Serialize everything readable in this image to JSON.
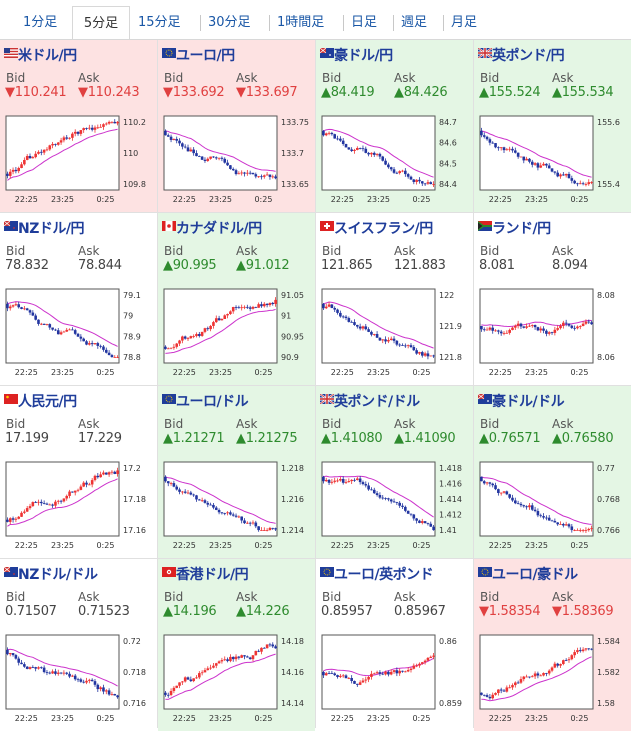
{
  "tabs": [
    "1分足",
    "5分足",
    "15分足",
    "30分足",
    "1時間足",
    "日足",
    "週足",
    "月足"
  ],
  "active_tab": "5分足",
  "labels": {
    "bid": "Bid",
    "ask": "Ask"
  },
  "colors": {
    "red_bg": "#fde2e2",
    "green_bg": "#e4f6e4",
    "up": "#2e8b2e",
    "down": "#e04040",
    "title": "#1f3d9a",
    "ma": "#cc33cc",
    "candle_up": "#e33",
    "candle_down": "#2235a0"
  },
  "pairs": [
    {
      "name": "米ドル/円",
      "flag": "us",
      "bid": "▼110.241",
      "ask": "▼110.243",
      "dir": "down",
      "bg": "red",
      "x_ticks": [
        "22:25",
        "23:25",
        "0:25"
      ],
      "y_ticks": [
        "110.2",
        "110",
        "109.8"
      ],
      "trend": "up"
    },
    {
      "name": "ユーロ/円",
      "flag": "eu",
      "bid": "▼133.692",
      "ask": "▼133.697",
      "dir": "down",
      "bg": "red",
      "x_ticks": [
        "22:25",
        "23:25",
        "0:25"
      ],
      "y_ticks": [
        "133.75",
        "133.7",
        "133.65"
      ],
      "trend": "down"
    },
    {
      "name": "豪ドル/円",
      "flag": "au",
      "bid": "▲84.419",
      "ask": "▲84.426",
      "dir": "up",
      "bg": "green",
      "x_ticks": [
        "22:25",
        "23:25",
        "0:25"
      ],
      "y_ticks": [
        "84.7",
        "84.6",
        "84.5",
        "84.4"
      ],
      "trend": "down"
    },
    {
      "name": "英ポンド/円",
      "flag": "gb",
      "bid": "▲155.524",
      "ask": "▲155.534",
      "dir": "up",
      "bg": "green",
      "x_ticks": [
        "22:25",
        "23:25",
        "0:25"
      ],
      "y_ticks": [
        "155.6",
        "155.4"
      ],
      "trend": "down"
    },
    {
      "name": "NZドル/円",
      "flag": "nz",
      "bid": "78.832",
      "ask": "78.844",
      "dir": "flat",
      "bg": "white",
      "x_ticks": [
        "22:25",
        "23:25",
        "0:25"
      ],
      "y_ticks": [
        "79.1",
        "79",
        "78.9",
        "78.8"
      ],
      "trend": "down"
    },
    {
      "name": "カナダドル/円",
      "flag": "ca",
      "bid": "▲90.995",
      "ask": "▲91.012",
      "dir": "up",
      "bg": "green",
      "x_ticks": [
        "22:25",
        "23:25",
        "0:25"
      ],
      "y_ticks": [
        "91.05",
        "91",
        "90.95",
        "90.9"
      ],
      "trend": "up"
    },
    {
      "name": "スイスフラン/円",
      "flag": "ch",
      "bid": "121.865",
      "ask": "121.883",
      "dir": "flat",
      "bg": "white",
      "x_ticks": [
        "22:25",
        "23:25",
        "0:25"
      ],
      "y_ticks": [
        "122",
        "121.9",
        "121.8"
      ],
      "trend": "down"
    },
    {
      "name": "ランド/円",
      "flag": "za",
      "bid": "8.081",
      "ask": "8.094",
      "dir": "flat",
      "bg": "white",
      "x_ticks": [
        "22:25",
        "23:25",
        "0:25"
      ],
      "y_ticks": [
        "8.08",
        "8.06"
      ],
      "trend": "flat"
    },
    {
      "name": "人民元/円",
      "flag": "cn",
      "bid": "17.199",
      "ask": "17.229",
      "dir": "flat",
      "bg": "white",
      "x_ticks": [
        "22:25",
        "23:25",
        "0:25"
      ],
      "y_ticks": [
        "17.2",
        "17.18",
        "17.16"
      ],
      "trend": "up"
    },
    {
      "name": "ユーロ/ドル",
      "flag": "eu",
      "bid": "▲1.21271",
      "ask": "▲1.21275",
      "dir": "up",
      "bg": "green",
      "x_ticks": [
        "22:25",
        "23:25",
        "0:25"
      ],
      "y_ticks": [
        "1.218",
        "1.216",
        "1.214"
      ],
      "trend": "down"
    },
    {
      "name": "英ポンド/ドル",
      "flag": "gb",
      "bid": "▲1.41080",
      "ask": "▲1.41090",
      "dir": "up",
      "bg": "green",
      "x_ticks": [
        "22:25",
        "23:25",
        "0:25"
      ],
      "y_ticks": [
        "1.418",
        "1.416",
        "1.414",
        "1.412",
        "1.41"
      ],
      "trend": "down"
    },
    {
      "name": "豪ドル/ドル",
      "flag": "au",
      "bid": "▲0.76571",
      "ask": "▲0.76580",
      "dir": "up",
      "bg": "green",
      "x_ticks": [
        "22:25",
        "23:25",
        "0:25"
      ],
      "y_ticks": [
        "0.77",
        "0.768",
        "0.766"
      ],
      "trend": "down"
    },
    {
      "name": "NZドル/ドル",
      "flag": "nz",
      "bid": "0.71507",
      "ask": "0.71523",
      "dir": "flat",
      "bg": "white",
      "x_ticks": [
        "22:25",
        "23:25",
        "0:25"
      ],
      "y_ticks": [
        "0.72",
        "0.718",
        "0.716"
      ],
      "trend": "down"
    },
    {
      "name": "香港ドル/円",
      "flag": "hk",
      "bid": "▲14.196",
      "ask": "▲14.226",
      "dir": "up",
      "bg": "green",
      "x_ticks": [
        "22:25",
        "23:25",
        "0:25"
      ],
      "y_ticks": [
        "14.18",
        "14.16",
        "14.14"
      ],
      "trend": "up"
    },
    {
      "name": "ユーロ/英ポンド",
      "flag": "eu",
      "bid": "0.85957",
      "ask": "0.85967",
      "dir": "flat",
      "bg": "white",
      "x_ticks": [
        "22:25",
        "23:25",
        "0:25"
      ],
      "y_ticks": [
        "0.86",
        "0.859"
      ],
      "trend": "flat"
    },
    {
      "name": "ユーロ/豪ドル",
      "flag": "eu",
      "bid": "▼1.58354",
      "ask": "▼1.58369",
      "dir": "down",
      "bg": "red",
      "x_ticks": [
        "22:25",
        "23:25",
        "0:25"
      ],
      "y_ticks": [
        "1.584",
        "1.582",
        "1.58"
      ],
      "trend": "up"
    }
  ]
}
